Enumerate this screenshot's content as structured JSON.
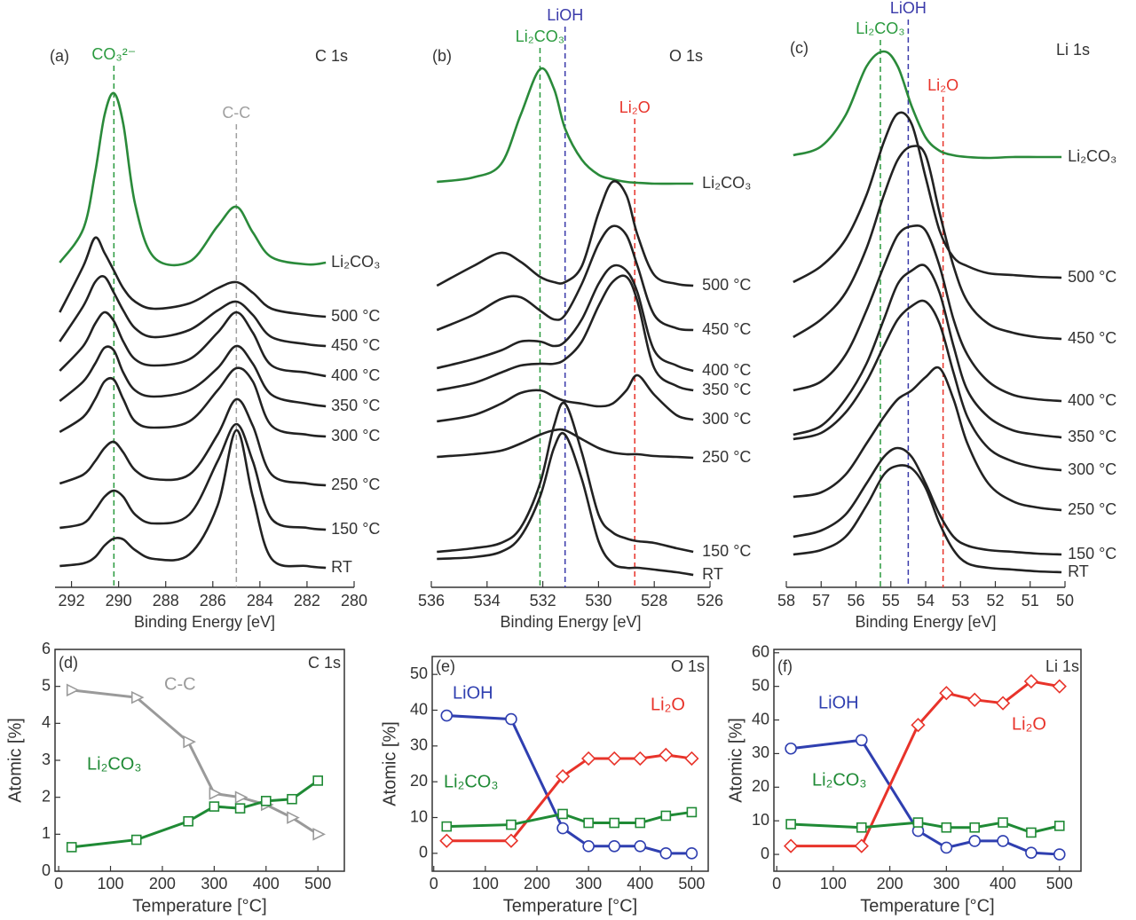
{
  "chart_data": [
    {
      "type": "spectrum",
      "panel_label": "(a)",
      "title": "C 1s",
      "xlabel": "Binding Energy [eV]",
      "xlim": [
        292.7,
        280
      ],
      "xticks": [
        292,
        290,
        288,
        286,
        284,
        282,
        280
      ],
      "ylim": [
        0,
        652
      ],
      "x": [
        292.5,
        291.5,
        291,
        290.6,
        290.2,
        289.8,
        289.3,
        288.5,
        287,
        285.8,
        285,
        284.3,
        283.5,
        282,
        281.2
      ],
      "markers": [
        {
          "label": "CO₃²⁻",
          "x": 290.2,
          "color": "#2a9a3e"
        },
        {
          "label": "C-C",
          "x": 285,
          "color": "#a0a0a0"
        }
      ],
      "series": [
        {
          "name": "Li₂CO₃",
          "color": "#2a8a3a",
          "values": [
            366,
            404,
            467,
            532,
            557,
            522,
            432,
            372,
            367,
            407,
            429,
            400,
            372,
            364,
            366
          ]
        },
        {
          "name": "500 °C",
          "color": "#222222",
          "values": [
            310,
            362,
            394,
            377,
            357,
            337,
            322,
            314,
            320,
            337,
            344,
            332,
            314,
            307,
            305
          ]
        },
        {
          "name": "450 °C",
          "color": "#222222",
          "values": [
            277,
            317,
            344,
            350,
            332,
            312,
            292,
            282,
            290,
            312,
            322,
            307,
            282,
            274,
            272
          ]
        },
        {
          "name": "400 °C",
          "color": "#222222",
          "values": [
            244,
            272,
            297,
            310,
            300,
            277,
            257,
            250,
            257,
            287,
            310,
            287,
            250,
            242,
            238
          ]
        },
        {
          "name": "350 °C",
          "color": "#222222",
          "values": [
            210,
            232,
            252,
            270,
            267,
            242,
            222,
            215,
            222,
            247,
            272,
            252,
            217,
            207,
            204
          ]
        },
        {
          "name": "300 °C",
          "color": "#222222",
          "values": [
            175,
            192,
            212,
            232,
            234,
            212,
            187,
            180,
            187,
            222,
            247,
            232,
            182,
            172,
            170
          ]
        },
        {
          "name": "250 °C",
          "color": "#222222",
          "values": [
            117,
            127,
            142,
            157,
            164,
            152,
            132,
            122,
            127,
            172,
            212,
            182,
            127,
            117,
            115
          ]
        },
        {
          "name": "150 °C",
          "color": "#222222",
          "values": [
            67,
            72,
            87,
            102,
            109,
            102,
            82,
            72,
            82,
            142,
            184,
            142,
            77,
            67,
            65
          ]
        },
        {
          "name": "RT",
          "color": "#222222",
          "values": [
            24,
            27,
            34,
            47,
            55,
            54,
            42,
            32,
            37,
            92,
            177,
            102,
            32,
            24,
            22
          ]
        }
      ]
    },
    {
      "type": "spectrum",
      "panel_label": "(b)",
      "title": "O 1s",
      "xlabel": "Binding Energy [eV]",
      "xlim": [
        536,
        526
      ],
      "xticks": [
        536,
        534,
        532,
        530,
        528,
        526
      ],
      "ylim": [
        0,
        652
      ],
      "x": [
        535.8,
        534.5,
        533.5,
        532.8,
        532.1,
        531.6,
        531.2,
        530.6,
        530,
        529.5,
        529,
        528.6,
        528,
        527.2,
        526.6
      ],
      "markers": [
        {
          "label": "Li₂CO₃",
          "x": 532.1,
          "color": "#2a9a3e"
        },
        {
          "label": "LiOH",
          "x": 531.2,
          "color": "#3a3aaa"
        },
        {
          "label": "Li₂O",
          "x": 528.7,
          "color": "#e8332a"
        }
      ],
      "series": [
        {
          "name": "Li₂CO₃",
          "color": "#2a8a3a",
          "values": [
            457,
            462,
            477,
            532,
            584,
            562,
            517,
            482,
            465,
            460,
            457,
            456,
            455,
            455,
            455
          ]
        },
        {
          "name": "500 °C",
          "color": "#222222",
          "values": [
            340,
            362,
            377,
            367,
            350,
            344,
            344,
            362,
            422,
            457,
            442,
            397,
            352,
            342,
            340
          ]
        },
        {
          "name": "450 °C",
          "color": "#222222",
          "values": [
            290,
            307,
            325,
            327,
            312,
            302,
            307,
            342,
            387,
            407,
            397,
            362,
            307,
            292,
            290
          ]
        },
        {
          "name": "400 °C",
          "color": "#222222",
          "values": [
            247,
            257,
            267,
            277,
            277,
            272,
            277,
            302,
            342,
            362,
            357,
            332,
            267,
            250,
            244
          ]
        },
        {
          "name": "350 °C",
          "color": "#222222",
          "values": [
            222,
            230,
            242,
            250,
            252,
            252,
            257,
            277,
            317,
            344,
            350,
            322,
            247,
            227,
            222
          ]
        },
        {
          "name": "300 °C",
          "color": "#222222",
          "values": [
            187,
            194,
            207,
            219,
            222,
            215,
            210,
            207,
            204,
            207,
            222,
            239,
            217,
            194,
            189
          ]
        },
        {
          "name": "250 °C",
          "color": "#222222",
          "values": [
            147,
            150,
            154,
            162,
            172,
            177,
            177,
            167,
            157,
            152,
            150,
            150,
            148,
            147,
            146
          ]
        },
        {
          "name": "150 °C",
          "color": "#222222",
          "values": [
            40,
            44,
            50,
            67,
            117,
            182,
            207,
            152,
            82,
            62,
            55,
            52,
            50,
            44,
            40
          ]
        },
        {
          "name": "RT",
          "color": "#222222",
          "values": [
            32,
            34,
            40,
            57,
            102,
            157,
            172,
            122,
            52,
            27,
            22,
            22,
            20,
            17,
            14
          ]
        }
      ]
    },
    {
      "type": "spectrum",
      "panel_label": "(c)",
      "title": "Li 1s",
      "xlabel": "Binding Energy [eV]",
      "xlim": [
        58,
        50
      ],
      "xticks": [
        58,
        57,
        56,
        55,
        54,
        53,
        52,
        51,
        50
      ],
      "ylim": [
        0,
        652
      ],
      "x": [
        57.8,
        57,
        56.3,
        55.7,
        55.2,
        54.8,
        54.4,
        54,
        53.6,
        53.2,
        52.8,
        52.2,
        51.5,
        50.8,
        50.1
      ],
      "markers": [
        {
          "label": "Li₂CO₃",
          "x": 55.3,
          "color": "#2a9a3e"
        },
        {
          "label": "LiOH",
          "x": 54.5,
          "color": "#3a3aaa"
        },
        {
          "label": "Li₂O",
          "x": 53.5,
          "color": "#e8332a"
        }
      ],
      "series": [
        {
          "name": "Li₂CO₃",
          "color": "#2a8a3a",
          "values": [
            487,
            497,
            532,
            587,
            604,
            587,
            542,
            507,
            492,
            487,
            485,
            484,
            485,
            485,
            485
          ]
        },
        {
          "name": "500 °C",
          "color": "#222222",
          "values": [
            344,
            362,
            392,
            442,
            502,
            534,
            522,
            462,
            402,
            372,
            362,
            354,
            352,
            350,
            349
          ]
        },
        {
          "name": "450 °C",
          "color": "#222222",
          "values": [
            282,
            302,
            332,
            382,
            442,
            482,
            497,
            487,
            422,
            362,
            322,
            297,
            287,
            282,
            280
          ]
        },
        {
          "name": "400 °C",
          "color": "#222222",
          "values": [
            222,
            232,
            262,
            312,
            362,
            397,
            407,
            402,
            362,
            302,
            262,
            232,
            217,
            212,
            210
          ]
        },
        {
          "name": "350 °C",
          "color": "#222222",
          "values": [
            172,
            182,
            212,
            252,
            302,
            342,
            357,
            362,
            332,
            272,
            222,
            192,
            177,
            172,
            169
          ]
        },
        {
          "name": "300 °C",
          "color": "#222222",
          "values": [
            167,
            174,
            197,
            232,
            272,
            302,
            317,
            322,
            297,
            242,
            192,
            157,
            142,
            135,
            132
          ]
        },
        {
          "name": "250 °C",
          "color": "#222222",
          "values": [
            102,
            107,
            127,
            162,
            192,
            212,
            222,
            237,
            247,
            212,
            162,
            117,
            97,
            90,
            87
          ]
        },
        {
          "name": "150 °C",
          "color": "#222222",
          "values": [
            57,
            64,
            82,
            117,
            147,
            157,
            147,
            117,
            82,
            57,
            47,
            42,
            40,
            38,
            37
          ]
        },
        {
          "name": "RT",
          "color": "#222222",
          "values": [
            37,
            42,
            57,
            92,
            127,
            137,
            134,
            112,
            72,
            42,
            27,
            22,
            20,
            18,
            17
          ]
        }
      ]
    },
    {
      "type": "line",
      "panel_label": "(d)",
      "title": "C 1s",
      "xlabel": "Temperature [°C]",
      "ylabel": "Atomic [%]",
      "xlim": [
        -7,
        551
      ],
      "xticks": [
        0,
        100,
        200,
        300,
        400,
        500
      ],
      "ylim": [
        0,
        6
      ],
      "yticks": [
        0,
        1,
        2,
        3,
        4,
        5,
        6
      ],
      "x": [
        25,
        150,
        250,
        300,
        350,
        400,
        450,
        500
      ],
      "series": [
        {
          "name": "C-C",
          "color": "#9a9a9a",
          "marker": "triangle",
          "values": [
            4.9,
            4.7,
            3.5,
            2.1,
            2.0,
            1.8,
            1.45,
            1.0
          ]
        },
        {
          "name": "Li₂CO₃",
          "color": "#1f8a35",
          "marker": "square",
          "values": [
            0.65,
            0.85,
            1.35,
            1.75,
            1.7,
            1.9,
            1.95,
            2.45
          ]
        }
      ]
    },
    {
      "type": "line",
      "panel_label": "(e)",
      "title": "O 1s",
      "xlabel": "Temperature [°C]",
      "ylabel": "Atomic [%]",
      "xlim": [
        -3,
        532
      ],
      "xticks": [
        0,
        100,
        200,
        300,
        400,
        500
      ],
      "ylim": [
        -5,
        55
      ],
      "yticks": [
        0,
        10,
        20,
        30,
        40,
        50
      ],
      "x": [
        25,
        150,
        250,
        300,
        350,
        400,
        450,
        500
      ],
      "series": [
        {
          "name": "LiOH",
          "color": "#2f3fb0",
          "marker": "circle",
          "values": [
            38.5,
            37.5,
            7,
            2,
            2,
            2,
            0,
            0
          ]
        },
        {
          "name": "Li₂O",
          "color": "#e8332a",
          "marker": "diamond",
          "values": [
            3.5,
            3.5,
            21.5,
            26.5,
            26.5,
            26.5,
            27.5,
            26.5
          ]
        },
        {
          "name": "Li₂CO₃",
          "color": "#1f8a35",
          "marker": "square",
          "values": [
            7.5,
            8,
            11,
            8.5,
            8.5,
            8.5,
            10.5,
            11.5
          ]
        }
      ]
    },
    {
      "type": "line",
      "panel_label": "(f)",
      "title": "Li 1s",
      "xlabel": "Temperature [°C]",
      "ylabel": "Atomic [%]",
      "xlim": [
        -5,
        538
      ],
      "xticks": [
        0,
        100,
        200,
        300,
        400,
        500
      ],
      "ylim": [
        -5,
        61
      ],
      "yticks": [
        0,
        10,
        20,
        30,
        40,
        50,
        60
      ],
      "x": [
        25,
        150,
        250,
        300,
        350,
        400,
        450,
        500
      ],
      "series": [
        {
          "name": "LiOH",
          "color": "#2f3fb0",
          "marker": "circle",
          "values": [
            31.5,
            34,
            7,
            2,
            4,
            4,
            0.5,
            0
          ]
        },
        {
          "name": "Li₂O",
          "color": "#e8332a",
          "marker": "diamond",
          "values": [
            2.5,
            2.5,
            38.5,
            48,
            46,
            45,
            51.5,
            50
          ]
        },
        {
          "name": "Li₂CO₃",
          "color": "#1f8a35",
          "marker": "square",
          "values": [
            9,
            8,
            9.5,
            8,
            8,
            9.5,
            6.5,
            8.5
          ]
        }
      ]
    }
  ]
}
